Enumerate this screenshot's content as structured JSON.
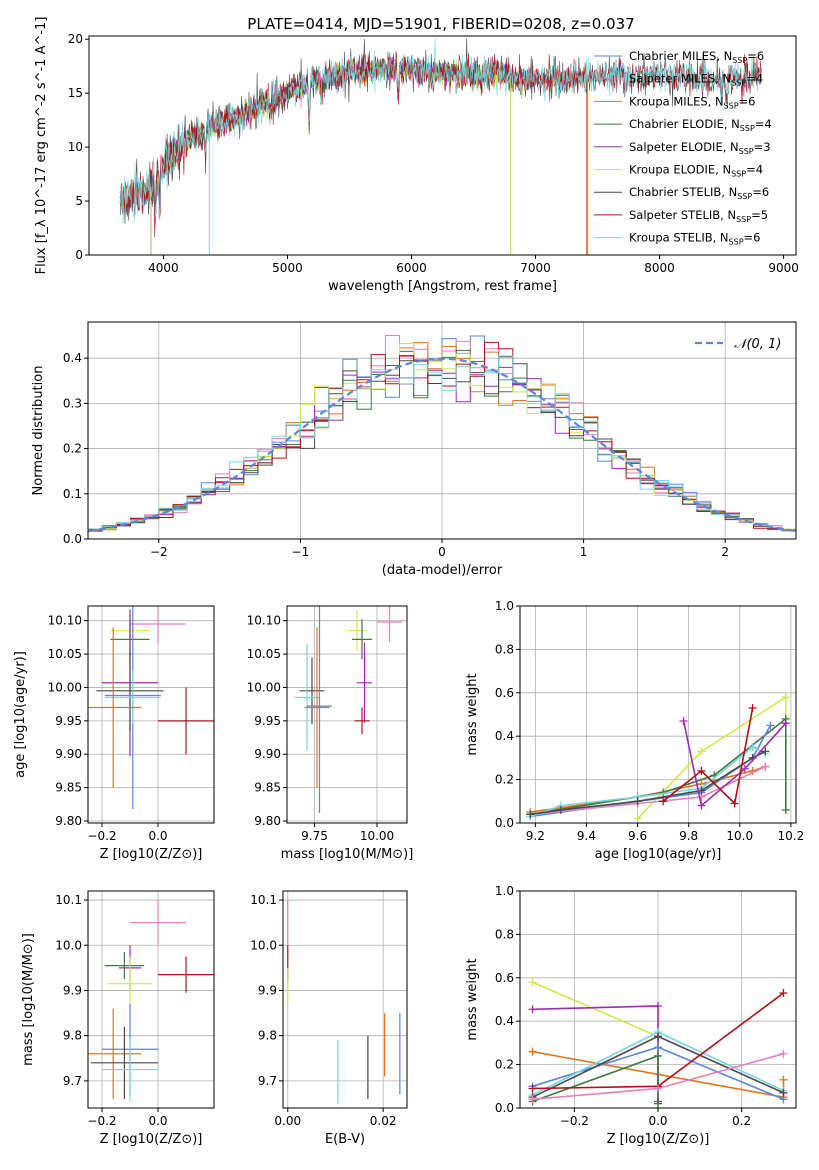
{
  "figure_title": "PLATE=0414, MJD=51901, FIBERID=0208, z=0.037",
  "colors": {
    "Chabrier MILES": "#5b86dc",
    "Salpeter MILES": "#e57fbd",
    "Kroupa MILES": "#e0741f",
    "Chabrier ELODIE": "#3e7a44",
    "Salpeter ELODIE": "#a02bb0",
    "Kroupa ELODIE": "#cfe94c",
    "Chabrier STELIB": "#4a4a4a",
    "Salpeter STELIB": "#b2101a",
    "Kroupa STELIB": "#78d6e0",
    "gaussian": "#5b86dc",
    "grid": "#b0b0b0"
  },
  "chart_data": [
    {
      "id": "spectrum",
      "type": "line",
      "title": "PLATE=0414, MJD=51901, FIBERID=0208, z=0.037",
      "xlabel": "wavelength [Angstrom, rest frame]",
      "ylabel": "Flux [f_λ 10^-17 erg cm^-2 s^-1 A^-1]",
      "xlim": [
        3400,
        9100
      ],
      "ylim": [
        0,
        20.3
      ],
      "xticks": [
        4000,
        5000,
        6000,
        7000,
        8000,
        9000
      ],
      "yticks": [
        0,
        5,
        10,
        15,
        20
      ],
      "grid": false,
      "legend_position": "top-right",
      "legend": [
        {
          "name": "Chabrier MILES",
          "nssp": "6"
        },
        {
          "name": "Salpeter MILES",
          "nssp": "4"
        },
        {
          "name": "Kroupa MILES",
          "nssp": "6"
        },
        {
          "name": "Chabrier ELODIE",
          "nssp": "4"
        },
        {
          "name": "Salpeter ELODIE",
          "nssp": "3"
        },
        {
          "name": "Kroupa ELODIE",
          "nssp": "4"
        },
        {
          "name": "Chabrier STELIB",
          "nssp": "6"
        },
        {
          "name": "Salpeter STELIB",
          "nssp": "5"
        },
        {
          "name": "Kroupa STELIB",
          "nssp": "6"
        }
      ],
      "continuum": {
        "x": [
          3650,
          3800,
          3900,
          4000,
          4100,
          4250,
          4400,
          4600,
          4800,
          5000,
          5200,
          5400,
          5600,
          5800,
          6000,
          6200,
          6400,
          6600,
          6800,
          7000,
          7200,
          7400,
          7600,
          7800,
          8000,
          8200,
          8400,
          8600,
          8800
        ],
        "y": [
          5.0,
          5.5,
          6.3,
          8.4,
          9.8,
          11.0,
          12.0,
          12.7,
          13.9,
          15.0,
          16.2,
          16.7,
          17.0,
          17.3,
          17.2,
          17.0,
          16.8,
          16.9,
          16.6,
          16.2,
          16.3,
          16.4,
          16.5,
          16.7,
          16.6,
          16.5,
          16.4,
          16.5,
          16.6
        ]
      },
      "absorption_features": [
        {
          "x": 3934,
          "y": 3.5
        },
        {
          "x": 3968,
          "y": 4.0
        },
        {
          "x": 4102,
          "y": 9.5
        },
        {
          "x": 4304,
          "y": 10.5
        },
        {
          "x": 4340,
          "y": 9.0
        },
        {
          "x": 4861,
          "y": 13.0
        },
        {
          "x": 5175,
          "y": 11.5
        },
        {
          "x": 5270,
          "y": 14.8
        },
        {
          "x": 5893,
          "y": 14.0
        },
        {
          "x": 6563,
          "y": 15.6
        },
        {
          "x": 8498,
          "y": 15.0
        },
        {
          "x": 8542,
          "y": 14.8
        },
        {
          "x": 8662,
          "y": 15.0
        }
      ],
      "truncated_series": [
        {
          "name": "Kroupa ELODIE",
          "range": [
            3900,
            6800
          ]
        },
        {
          "name": "Chabrier ELODIE",
          "range": [
            3900,
            6800
          ]
        },
        {
          "name": "Salpeter ELODIE",
          "range": [
            3900,
            6800
          ]
        },
        {
          "name": "Kroupa MILES",
          "range": [
            3540,
            7410
          ]
        },
        {
          "name": "Chabrier MILES",
          "range": [
            3540,
            7410
          ]
        },
        {
          "name": "Salpeter MILES",
          "range": [
            3540,
            7410
          ]
        }
      ]
    },
    {
      "id": "residuals",
      "type": "histogram",
      "xlabel": "(data-model)/error",
      "ylabel": "Normed distribution",
      "xlim": [
        -2.5,
        2.5
      ],
      "ylim": [
        0,
        0.48
      ],
      "xticks": [
        -2,
        -1,
        0,
        1,
        2
      ],
      "yticks": [
        0.0,
        0.1,
        0.2,
        0.3,
        0.4
      ],
      "grid": true,
      "legend_position": "top-right",
      "legend_label": "𝒩(0, 1)",
      "bin_width": 0.1,
      "gaussian": {
        "mean": 0,
        "sigma": 1
      }
    },
    {
      "id": "age_vs_Z",
      "type": "errorbar",
      "xlabel": "Z [log10(Z/Z⊙)]",
      "ylabel": "age  [log10(age/yr)]",
      "xlim": [
        -0.25,
        0.2
      ],
      "ylim": [
        9.797,
        10.122
      ],
      "xticks": [
        -0.2,
        0.0
      ],
      "yticks": [
        9.8,
        9.85,
        9.9,
        9.95,
        10.0,
        10.05,
        10.1
      ],
      "grid": true,
      "points": [
        {
          "series": "Salpeter MILES",
          "x": 0.0,
          "xerr": 0.1,
          "y": 10.095,
          "yerr": 0.03
        },
        {
          "series": "Kroupa ELODIE",
          "x": -0.1,
          "xerr": 0.07,
          "y": 10.085,
          "yerr": 0.03
        },
        {
          "series": "Chabrier ELODIE",
          "x": -0.1,
          "xerr": 0.07,
          "y": 10.072,
          "yerr": 0.03
        },
        {
          "series": "Salpeter ELODIE",
          "x": -0.1,
          "xerr": 0.1,
          "y": 10.007,
          "yerr": 0.11
        },
        {
          "series": "Chabrier STELIB",
          "x": -0.1,
          "xerr": 0.12,
          "y": 9.995,
          "yerr": 0.06
        },
        {
          "series": "Chabrier MILES",
          "x": -0.09,
          "xerr": 0.1,
          "y": 9.988,
          "yerr": 0.17
        },
        {
          "series": "Kroupa STELIB",
          "x": -0.09,
          "xerr": 0.1,
          "y": 9.985,
          "yerr": 0.04
        },
        {
          "series": "Kroupa MILES",
          "x": -0.16,
          "xerr": 0.1,
          "y": 9.97,
          "yerr": 0.12
        },
        {
          "series": "Salpeter STELIB",
          "x": 0.1,
          "xerr": 0.1,
          "y": 9.95,
          "yerr": 0.05
        }
      ]
    },
    {
      "id": "age_vs_mass",
      "type": "errorbar",
      "xlabel": "mass [log10(M/M⊙)]",
      "ylabel": "",
      "xlim": [
        9.64,
        10.12
      ],
      "ylim": [
        9.797,
        10.122
      ],
      "xticks": [
        9.75,
        10.0
      ],
      "yticks": [
        9.8,
        9.85,
        9.9,
        9.95,
        10.0,
        10.05,
        10.1
      ],
      "grid": true,
      "points": [
        {
          "series": "Salpeter MILES",
          "x": 10.05,
          "xerr": 0.05,
          "y": 10.098,
          "yerr": 0.03
        },
        {
          "series": "Kroupa ELODIE",
          "x": 9.92,
          "xerr": 0.04,
          "y": 10.085,
          "yerr": 0.03
        },
        {
          "series": "Chabrier ELODIE",
          "x": 9.94,
          "xerr": 0.04,
          "y": 10.072,
          "yerr": 0.03
        },
        {
          "series": "Salpeter ELODIE",
          "x": 9.95,
          "xerr": 0.03,
          "y": 10.007,
          "yerr": 0.06
        },
        {
          "series": "Chabrier STELIB",
          "x": 9.74,
          "xerr": 0.05,
          "y": 9.995,
          "yerr": 0.05
        },
        {
          "series": "Kroupa STELIB",
          "x": 9.72,
          "xerr": 0.05,
          "y": 9.985,
          "yerr": 0.08
        },
        {
          "series": "Chabrier MILES",
          "x": 9.77,
          "xerr": 0.05,
          "y": 9.972,
          "yerr": 0.16
        },
        {
          "series": "Kroupa MILES",
          "x": 9.76,
          "xerr": 0.05,
          "y": 9.97,
          "yerr": 0.12
        },
        {
          "series": "Salpeter STELIB",
          "x": 9.94,
          "xerr": 0.03,
          "y": 9.95,
          "yerr": 0.02
        }
      ]
    },
    {
      "id": "massweight_vs_age",
      "type": "line",
      "xlabel": "age  [log10(age/yr)]",
      "ylabel": "mass weight",
      "xlim": [
        9.14,
        10.22
      ],
      "ylim": [
        0,
        1.0
      ],
      "xticks": [
        9.2,
        9.4,
        9.6,
        9.8,
        10.0,
        10.2
      ],
      "yticks": [
        0.0,
        0.2,
        0.4,
        0.6,
        0.8,
        1.0
      ],
      "grid": true,
      "series": [
        {
          "name": "Kroupa ELODIE",
          "x": [
            9.6,
            9.85,
            10.18,
            10.18
          ],
          "y": [
            0.02,
            0.33,
            0.58,
            0.06
          ]
        },
        {
          "name": "Kroupa MILES",
          "x": [
            9.18,
            9.6,
            9.85,
            10.05,
            10.1
          ],
          "y": [
            0.05,
            0.12,
            0.18,
            0.24,
            0.26
          ]
        },
        {
          "name": "Chabrier ELODIE",
          "x": [
            9.18,
            9.7,
            9.9,
            10.18,
            10.18
          ],
          "y": [
            0.04,
            0.14,
            0.22,
            0.48,
            0.06
          ]
        },
        {
          "name": "Chabrier MILES",
          "x": [
            9.18,
            9.6,
            9.85,
            10.05,
            10.12
          ],
          "y": [
            0.03,
            0.1,
            0.14,
            0.3,
            0.45
          ]
        },
        {
          "name": "Salpeter MILES",
          "x": [
            9.18,
            9.6,
            9.85,
            10.1
          ],
          "y": [
            0.04,
            0.09,
            0.12,
            0.26
          ]
        },
        {
          "name": "Kroupa STELIB",
          "x": [
            9.18,
            9.3,
            9.6,
            9.85,
            10.05,
            10.1
          ],
          "y": [
            0.03,
            0.08,
            0.12,
            0.16,
            0.35,
            0.32
          ]
        },
        {
          "name": "Chabrier STELIB",
          "x": [
            9.18,
            9.3,
            9.6,
            9.85,
            10.05,
            10.1
          ],
          "y": [
            0.04,
            0.06,
            0.1,
            0.15,
            0.3,
            0.33
          ]
        },
        {
          "name": "Salpeter ELODIE",
          "x": [
            9.78,
            9.85,
            10.02,
            10.18
          ],
          "y": [
            0.47,
            0.08,
            0.25,
            0.46
          ]
        },
        {
          "name": "Salpeter STELIB",
          "x": [
            9.7,
            9.85,
            9.98,
            10.05
          ],
          "y": [
            0.1,
            0.24,
            0.09,
            0.53
          ]
        }
      ]
    },
    {
      "id": "mass_vs_Z",
      "type": "errorbar",
      "xlabel": "Z [log10(Z/Z⊙)]",
      "ylabel": "mass [log10(M/M⊙)]",
      "xlim": [
        -0.25,
        0.2
      ],
      "ylim": [
        9.64,
        10.12
      ],
      "xticks": [
        -0.2,
        0.0
      ],
      "yticks": [
        9.7,
        9.8,
        9.9,
        10.0,
        10.1
      ],
      "grid": true,
      "points": [
        {
          "series": "Salpeter MILES",
          "x": 0.0,
          "xerr": 0.1,
          "y": 10.05,
          "yerr": 0.05
        },
        {
          "series": "Salpeter ELODIE",
          "x": -0.1,
          "xerr": 0.04,
          "y": 9.95,
          "yerr": 0.05
        },
        {
          "series": "Chabrier ELODIE",
          "x": -0.12,
          "xerr": 0.07,
          "y": 9.955,
          "yerr": 0.03
        },
        {
          "series": "Salpeter STELIB",
          "x": 0.1,
          "xerr": 0.1,
          "y": 9.935,
          "yerr": 0.04
        },
        {
          "series": "Kroupa ELODIE",
          "x": -0.1,
          "xerr": 0.08,
          "y": 9.915,
          "yerr": 0.06
        },
        {
          "series": "Chabrier MILES",
          "x": -0.1,
          "xerr": 0.1,
          "y": 9.77,
          "yerr": 0.1
        },
        {
          "series": "Kroupa MILES",
          "x": -0.16,
          "xerr": 0.1,
          "y": 9.76,
          "yerr": 0.1
        },
        {
          "series": "Chabrier STELIB",
          "x": -0.12,
          "xerr": 0.12,
          "y": 9.74,
          "yerr": 0.08
        },
        {
          "series": "Kroupa STELIB",
          "x": -0.1,
          "xerr": 0.1,
          "y": 9.725,
          "yerr": 0.07
        }
      ]
    },
    {
      "id": "mass_vs_EBV",
      "type": "errorbar",
      "xlabel": "E(B-V)",
      "ylabel": "",
      "xlim": [
        -0.001,
        0.025
      ],
      "ylim": [
        9.64,
        10.12
      ],
      "xticks": [
        0.0,
        0.02
      ],
      "yticks": [
        9.7,
        9.8,
        9.9,
        10.0,
        10.1
      ],
      "grid": true,
      "points": [
        {
          "series": "Salpeter MILES",
          "x": 0.0,
          "xerr": 0,
          "y": 10.05,
          "yerr": 0.05
        },
        {
          "series": "Salpeter STELIB",
          "x": 0.0,
          "xerr": 0,
          "y": 9.96,
          "yerr": 0.04
        },
        {
          "series": "Kroupa ELODIE",
          "x": 0.0,
          "xerr": 0,
          "y": 9.91,
          "yerr": 0.04
        },
        {
          "series": "Kroupa STELIB",
          "x": 0.0105,
          "xerr": 0,
          "y": 9.72,
          "yerr": 0.07
        },
        {
          "series": "Chabrier STELIB",
          "x": 0.0168,
          "xerr": 0,
          "y": 9.73,
          "yerr": 0.07
        },
        {
          "series": "Kroupa MILES",
          "x": 0.0203,
          "xerr": 0,
          "y": 9.78,
          "yerr": 0.07
        },
        {
          "series": "Chabrier MILES",
          "x": 0.0235,
          "xerr": 0,
          "y": 9.76,
          "yerr": 0.09
        }
      ]
    },
    {
      "id": "massweight_vs_Z",
      "type": "line",
      "xlabel": "Z [log10(Z/Z⊙)]",
      "ylabel": "mass weight",
      "xlim": [
        -0.33,
        0.33
      ],
      "ylim": [
        0,
        1.0
      ],
      "xticks": [
        -0.2,
        0.0,
        0.2
      ],
      "yticks": [
        0.0,
        0.2,
        0.4,
        0.6,
        0.8,
        1.0
      ],
      "grid": true,
      "series": [
        {
          "name": "Kroupa ELODIE",
          "x": [
            -0.3,
            0.0,
            0.0
          ],
          "y": [
            0.58,
            0.33,
            0.02
          ]
        },
        {
          "name": "Salpeter ELODIE",
          "x": [
            -0.3,
            0.0,
            0.0
          ],
          "y": [
            0.455,
            0.47,
            0.03
          ]
        },
        {
          "name": "Kroupa MILES",
          "x": [
            -0.3,
            0.3,
            0.3
          ],
          "y": [
            0.26,
            0.05,
            0.13
          ]
        },
        {
          "name": "Chabrier ELODIE",
          "x": [
            -0.3,
            0.0,
            0.0
          ],
          "y": [
            0.03,
            0.24,
            0.02
          ]
        },
        {
          "name": "Chabrier MILES",
          "x": [
            -0.3,
            0.0,
            0.3
          ],
          "y": [
            0.1,
            0.28,
            0.04
          ]
        },
        {
          "name": "Kroupa STELIB",
          "x": [
            -0.3,
            0.0,
            0.3
          ],
          "y": [
            0.06,
            0.35,
            0.08
          ]
        },
        {
          "name": "Chabrier STELIB",
          "x": [
            -0.3,
            0.0,
            0.3
          ],
          "y": [
            0.05,
            0.33,
            0.07
          ]
        },
        {
          "name": "Salpeter STELIB",
          "x": [
            -0.3,
            0.0,
            0.3
          ],
          "y": [
            0.09,
            0.1,
            0.53
          ]
        },
        {
          "name": "Salpeter MILES",
          "x": [
            -0.3,
            0.0,
            0.3
          ],
          "y": [
            0.04,
            0.09,
            0.25
          ]
        }
      ]
    }
  ]
}
